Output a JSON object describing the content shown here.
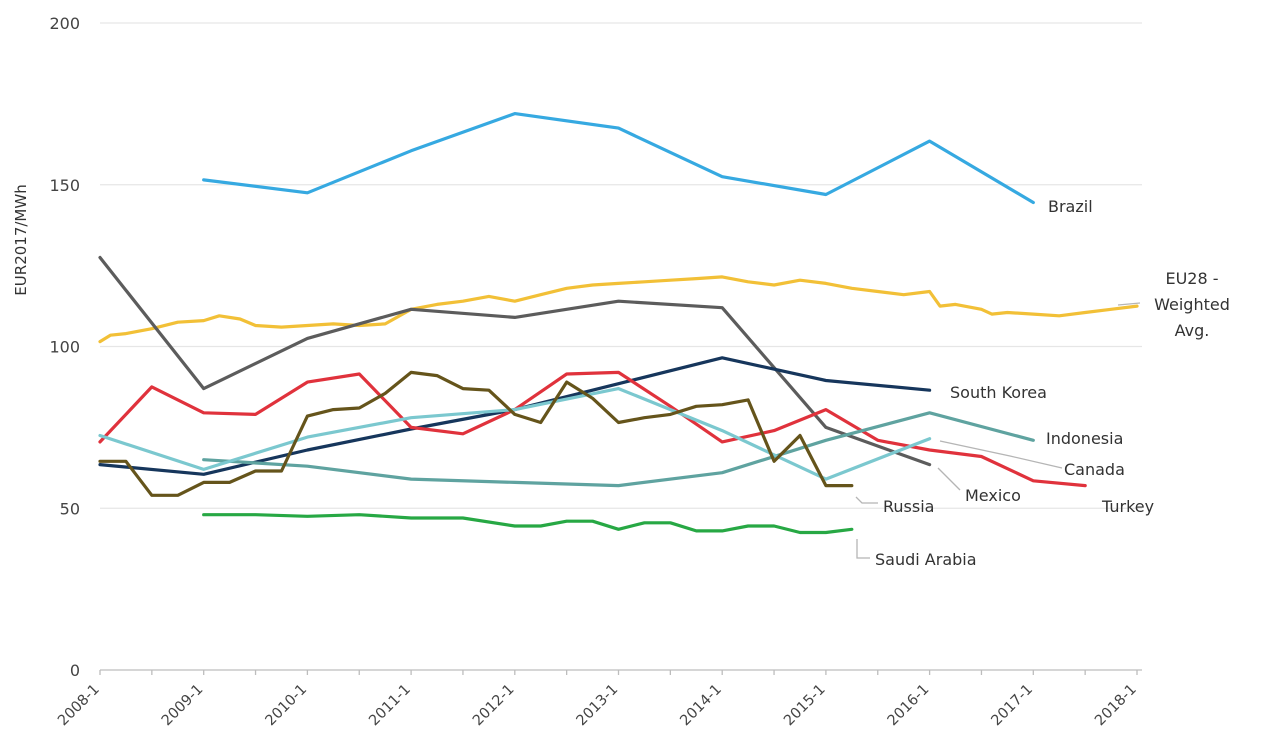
{
  "chart_data": {
    "type": "line",
    "ylabel": "EUR2017/MWh",
    "ylim": [
      0,
      200
    ],
    "yticks": [
      "0",
      "50",
      "100",
      "150",
      "200"
    ],
    "xlim": [
      2008,
      2018
    ],
    "xticks": [
      "2008-1",
      "2009-1",
      "2010-1",
      "2011-1",
      "2012-1",
      "2013-1",
      "2014-1",
      "2015-1",
      "2016-1",
      "2017-1",
      "2018-1"
    ],
    "grid": "horizontal",
    "series": [
      {
        "name": "Brazil",
        "color": "#36a9e1",
        "x": [
          2009.0,
          2010.0,
          2011.0,
          2012.0,
          2013.0,
          2014.0,
          2015.0,
          2016.0,
          2017.0
        ],
        "y": [
          151.5,
          147.5,
          160.5,
          172.0,
          167.5,
          152.5,
          147.0,
          163.5,
          144.5
        ]
      },
      {
        "name": "EU28 - Weighted Avg.",
        "color": "#f2c037",
        "x": [
          2008.0,
          2008.1,
          2008.25,
          2008.5,
          2008.75,
          2009.0,
          2009.15,
          2009.35,
          2009.5,
          2009.75,
          2010.0,
          2010.25,
          2010.5,
          2010.75,
          2011.0,
          2011.25,
          2011.5,
          2011.75,
          2012.0,
          2012.25,
          2012.5,
          2012.75,
          2013.0,
          2013.25,
          2013.5,
          2013.75,
          2014.0,
          2014.25,
          2014.5,
          2014.75,
          2015.0,
          2015.25,
          2015.5,
          2015.75,
          2016.0,
          2016.1,
          2016.25,
          2016.5,
          2016.6,
          2016.75,
          2017.0,
          2017.25,
          2017.5,
          2017.75,
          2018.0
        ],
        "y": [
          101.5,
          103.5,
          104.0,
          105.5,
          107.5,
          108.0,
          109.5,
          108.5,
          106.5,
          106.0,
          106.5,
          107.0,
          106.5,
          107.0,
          111.5,
          113.0,
          114.0,
          115.5,
          114.0,
          116.0,
          118.0,
          119.0,
          119.5,
          120.0,
          120.5,
          121.0,
          121.5,
          120.0,
          119.0,
          120.5,
          119.5,
          118.0,
          117.0,
          116.0,
          117.0,
          112.5,
          113.0,
          111.5,
          110.0,
          110.5,
          110.0,
          109.5,
          110.5,
          111.5,
          112.5
        ]
      },
      {
        "name": "Mexico",
        "color": "#5c5c5c",
        "x": [
          2008.0,
          2009.0,
          2010.0,
          2011.0,
          2012.0,
          2013.0,
          2014.0,
          2015.0,
          2016.0
        ],
        "y": [
          127.5,
          87.0,
          102.5,
          111.5,
          109.0,
          114.0,
          112.0,
          75.0,
          63.5
        ]
      },
      {
        "name": "South Korea",
        "color": "#16365c",
        "x": [
          2008.0,
          2009.0,
          2010.0,
          2011.0,
          2012.0,
          2013.0,
          2014.0,
          2015.0,
          2016.0
        ],
        "y": [
          63.5,
          60.5,
          68.0,
          74.5,
          80.5,
          88.5,
          96.5,
          89.5,
          86.5
        ]
      },
      {
        "name": "Turkey",
        "color": "#e0323c",
        "x": [
          2008.0,
          2008.5,
          2009.0,
          2009.5,
          2010.0,
          2010.5,
          2011.0,
          2011.5,
          2012.0,
          2012.5,
          2013.0,
          2013.5,
          2014.0,
          2014.5,
          2015.0,
          2015.5,
          2016.0,
          2016.5,
          2017.0,
          2017.5
        ],
        "y": [
          70.5,
          87.5,
          79.5,
          79.0,
          89.0,
          91.5,
          75.0,
          73.0,
          80.5,
          91.5,
          92.0,
          81.5,
          70.5,
          74.0,
          80.5,
          71.0,
          68.0,
          66.0,
          58.5,
          57.0
        ]
      },
      {
        "name": "Indonesia",
        "color": "#5fa3a0",
        "x": [
          2009.0,
          2010.0,
          2011.0,
          2012.0,
          2013.0,
          2014.0,
          2015.0,
          2016.0,
          2017.0
        ],
        "y": [
          65.0,
          63.0,
          59.0,
          58.0,
          57.0,
          61.0,
          71.0,
          79.5,
          71.0
        ]
      },
      {
        "name": "Canada",
        "color": "#7bc8cf",
        "x": [
          2008.0,
          2009.0,
          2010.0,
          2011.0,
          2012.0,
          2013.0,
          2014.0,
          2015.0,
          2016.0
        ],
        "y": [
          72.5,
          62.0,
          72.0,
          78.0,
          80.5,
          87.0,
          74.0,
          59.0,
          71.5
        ]
      },
      {
        "name": "Russia",
        "color": "#65541b",
        "x": [
          2008.0,
          2008.25,
          2008.5,
          2008.75,
          2009.0,
          2009.25,
          2009.5,
          2009.75,
          2010.0,
          2010.25,
          2010.5,
          2010.75,
          2011.0,
          2011.25,
          2011.5,
          2011.75,
          2012.0,
          2012.25,
          2012.5,
          2012.75,
          2013.0,
          2013.25,
          2013.5,
          2013.75,
          2014.0,
          2014.25,
          2014.5,
          2014.75,
          2015.0,
          2015.25
        ],
        "y": [
          64.5,
          64.5,
          54.0,
          54.0,
          58.0,
          58.0,
          61.5,
          61.5,
          78.5,
          80.5,
          81.0,
          85.5,
          92.0,
          91.0,
          87.0,
          86.5,
          79.0,
          76.5,
          89.0,
          84.0,
          76.5,
          78.0,
          79.0,
          81.5,
          82.0,
          83.5,
          64.5,
          72.5,
          57.0,
          57.0
        ]
      },
      {
        "name": "Saudi Arabia",
        "color": "#27a844",
        "x": [
          2009.0,
          2009.5,
          2010.0,
          2010.5,
          2011.0,
          2011.5,
          2012.0,
          2012.25,
          2012.5,
          2012.75,
          2013.0,
          2013.25,
          2013.5,
          2013.75,
          2014.0,
          2014.25,
          2014.5,
          2014.75,
          2015.0,
          2015.25
        ],
        "y": [
          48.0,
          48.0,
          47.5,
          48.0,
          47.0,
          47.0,
          44.5,
          44.5,
          46.0,
          46.0,
          43.5,
          45.5,
          45.5,
          43.0,
          43.0,
          44.5,
          44.5,
          42.5,
          42.5,
          43.5
        ]
      }
    ],
    "labels": [
      {
        "text": "Brazil",
        "series": 0
      },
      {
        "text": "EU28 -",
        "series": 1
      },
      {
        "text": "Weighted",
        "series": 1
      },
      {
        "text": "Avg.",
        "series": 1
      },
      {
        "text": "South Korea",
        "series": 3
      },
      {
        "text": "Indonesia",
        "series": 5
      },
      {
        "text": "Canada",
        "series": 6
      },
      {
        "text": "Mexico",
        "series": 2
      },
      {
        "text": "Russia",
        "series": 7
      },
      {
        "text": "Turkey",
        "series": 4
      },
      {
        "text": "Saudi Arabia",
        "series": 8
      }
    ]
  }
}
